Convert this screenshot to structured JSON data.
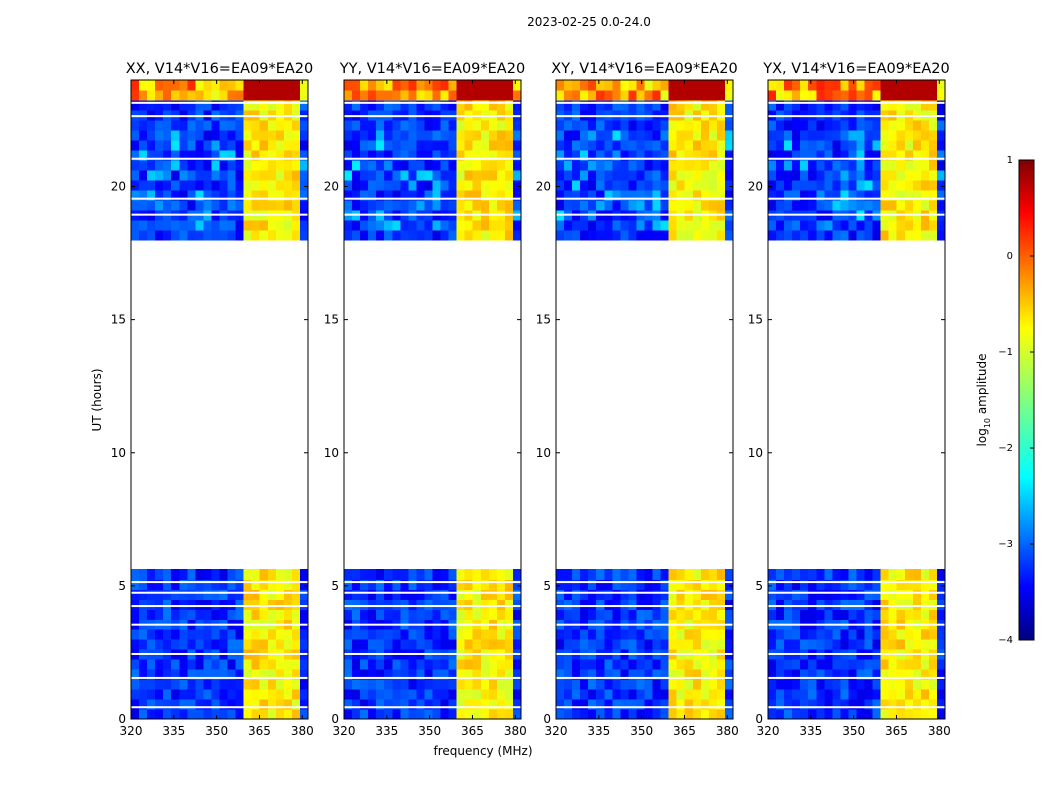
{
  "figure": {
    "suptitle": "2023-02-25 0.0-24.0",
    "xlabel": "frequency (MHz)",
    "ylabel": "UT (hours)"
  },
  "chart_data": {
    "type": "heatmap",
    "title": "2023-02-25 0.0-24.0",
    "xlabel": "frequency (MHz)",
    "ylabel": "UT (hours)",
    "xlim": [
      320,
      382
    ],
    "ylim": [
      0,
      24
    ],
    "xticks": [
      320,
      335,
      350,
      365,
      380
    ],
    "yticks": [
      0,
      5,
      10,
      15,
      20
    ],
    "data_gap_hours": [
      5.8,
      18.1
    ],
    "rfi_band_mhz": [
      360.5,
      380
    ],
    "panels": [
      {
        "title": "XX, V14*V16=EA09*EA20"
      },
      {
        "title": "YY, V14*V16=EA09*EA20"
      },
      {
        "title": "XY, V14*V16=EA09*EA20"
      },
      {
        "title": "YX, V14*V16=EA09*EA20"
      }
    ],
    "colorbar": {
      "label_prefix": "log",
      "label_sub": "10",
      "label_suffix": " amplitude",
      "min": -4,
      "max": 1,
      "ticks": [
        "1",
        "0",
        "−1",
        "−2",
        "−3",
        "−4"
      ],
      "colormap": [
        "#00007f",
        "#0000ff",
        "#007fff",
        "#00ffff",
        "#7fff7f",
        "#ffff00",
        "#ff7f00",
        "#ff0000",
        "#7f0000"
      ]
    }
  }
}
